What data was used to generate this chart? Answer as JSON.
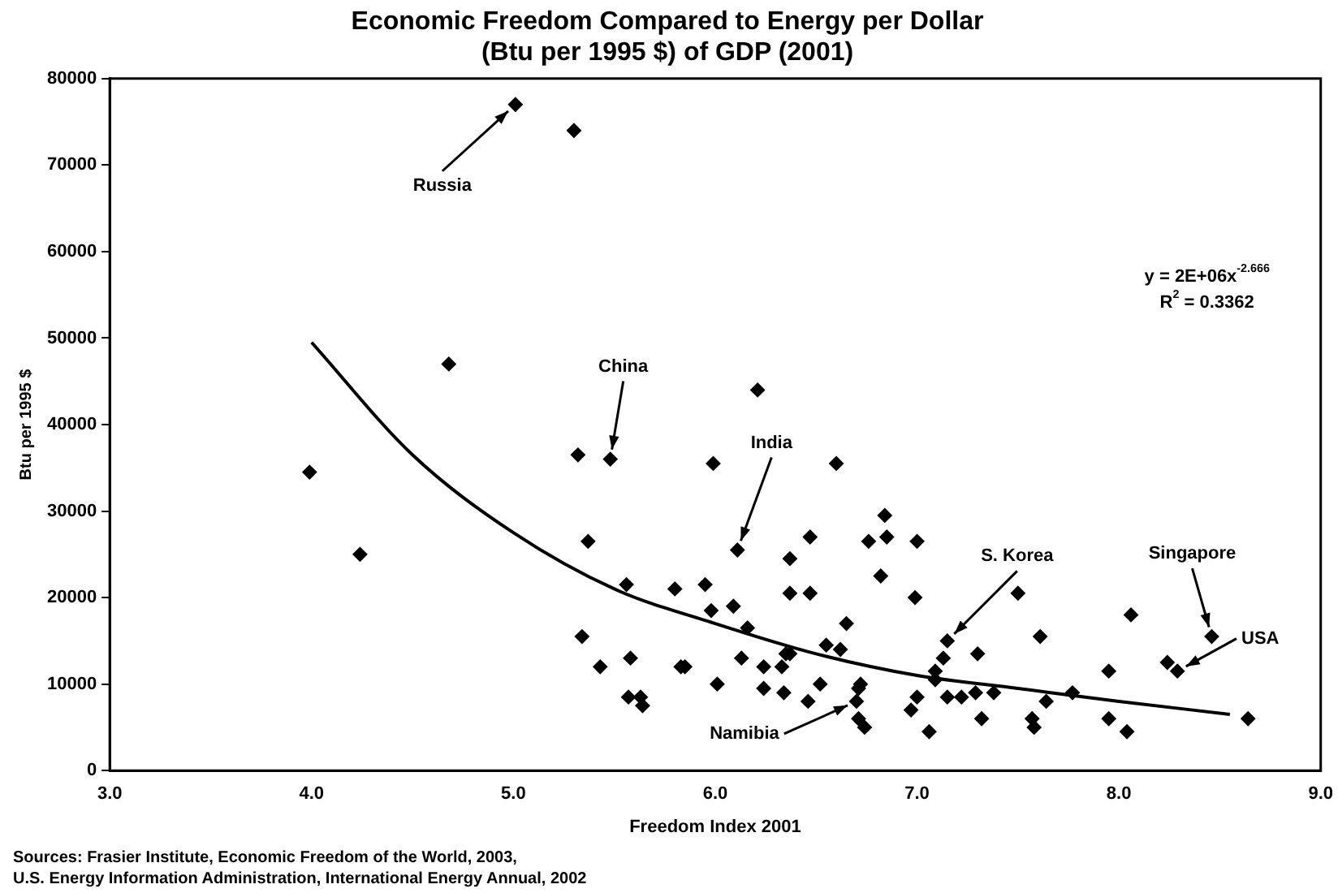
{
  "chart_data": {
    "type": "scatter",
    "title": "Economic Freedom Compared to Energy per Dollar\n(Btu per 1995 $) of GDP (2001)",
    "xlabel": "Freedom Index 2001",
    "ylabel": "Btu per 1995 $",
    "xlim": [
      3,
      9
    ],
    "xticks": [
      {
        "value": 3,
        "label": "3.0"
      },
      {
        "value": 4,
        "label": "4.0"
      },
      {
        "value": 5,
        "label": "5.0"
      },
      {
        "value": 6,
        "label": "6.0"
      },
      {
        "value": 7,
        "label": "7.0"
      },
      {
        "value": 8,
        "label": "8.0"
      },
      {
        "value": 9,
        "label": "9.0"
      }
    ],
    "ylim": [
      0,
      80000
    ],
    "yticks": [
      0,
      10000,
      20000,
      30000,
      40000,
      50000,
      60000,
      70000,
      80000
    ],
    "grid": false,
    "legend": false,
    "marker": "diamond",
    "series": [
      {
        "type": "scatter",
        "color": "#000000",
        "x": [
          5.01,
          5.3,
          4.68,
          3.99,
          5.32,
          5.48,
          5.99,
          4.24,
          5.37,
          5.56,
          5.8,
          5.95,
          5.98,
          5.34,
          5.43,
          5.58,
          5.83,
          5.85,
          6.01,
          5.57,
          5.63,
          5.64,
          6.21,
          6.6,
          6.84,
          6.85,
          6.47,
          6.76,
          7.0,
          6.11,
          6.37,
          6.37,
          6.47,
          6.82,
          6.99,
          7.5,
          6.09,
          6.16,
          6.65,
          6.55,
          6.62,
          6.35,
          6.37,
          6.13,
          7.61,
          8.06,
          8.46,
          7.15,
          7.3,
          7.13,
          7.09,
          7.09,
          8.24,
          8.29,
          7.95,
          6.24,
          6.33,
          6.24,
          6.34,
          6.52,
          6.72,
          6.71,
          6.46,
          6.7,
          6.71,
          6.74,
          6.97,
          7.0,
          7.06,
          7.15,
          7.22,
          7.29,
          7.38,
          7.32,
          7.57,
          7.58,
          7.64,
          7.77,
          7.95,
          8.04,
          8.64
        ],
        "values": [
          77000,
          74000,
          47000,
          34500,
          36500,
          36000,
          35500,
          25000,
          26500,
          21500,
          21000,
          21500,
          18500,
          15500,
          12000,
          13000,
          12000,
          12000,
          10000,
          8500,
          8500,
          7500,
          44000,
          35500,
          29500,
          27000,
          27000,
          26500,
          26500,
          25500,
          24500,
          20500,
          20500,
          22500,
          20000,
          20500,
          19000,
          16500,
          17000,
          14500,
          14000,
          13500,
          13500,
          13000,
          15500,
          18000,
          15500,
          15000,
          13500,
          13000,
          11500,
          10500,
          12500,
          11500,
          11500,
          12000,
          12000,
          9500,
          9000,
          10000,
          10000,
          9500,
          8000,
          8000,
          6000,
          5000,
          7000,
          8500,
          4500,
          8500,
          8500,
          9000,
          9000,
          6000,
          6000,
          5000,
          8000,
          9000,
          6000,
          4500,
          6000
        ]
      },
      {
        "type": "line",
        "color": "#000000",
        "marker": "none",
        "line_style": "solid",
        "x": [
          4.0,
          4.5,
          5.0,
          5.5,
          6.0,
          6.5,
          7.0,
          7.5,
          8.0,
          8.55
        ],
        "values": [
          49500,
          36500,
          27500,
          21000,
          17000,
          13500,
          11000,
          9500,
          8000,
          6500
        ]
      }
    ],
    "annotations": [
      {
        "text": "Russia",
        "x": 5.01,
        "y": 77000
      },
      {
        "text": "China",
        "x": 5.48,
        "y": 36000
      },
      {
        "text": "India",
        "x": 6.11,
        "y": 25500
      },
      {
        "text": "S. Korea",
        "x": 7.15,
        "y": 15000
      },
      {
        "text": "Singapore",
        "x": 8.46,
        "y": 15500
      },
      {
        "text": "USA",
        "x": 8.29,
        "y": 11500
      },
      {
        "text": "Namibia",
        "x": 6.7,
        "y": 8000
      },
      "y = 2E+06x$^{-2.666}$",
      "R$^{2}$ = 0.3362",
      "Sources: Frasier Institute, Economic Freedom of the World, 2003,",
      "U.S. Energy Information Administration, International Energy Annual, 2002"
    ]
  }
}
